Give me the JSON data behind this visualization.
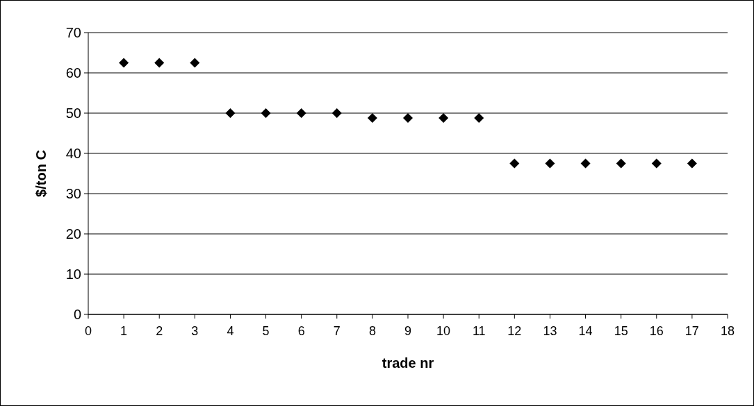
{
  "chart_data": {
    "type": "scatter",
    "xlabel": "trade nr",
    "ylabel": "$/ton C",
    "x": [
      1,
      2,
      3,
      4,
      5,
      6,
      7,
      8,
      9,
      10,
      11,
      12,
      13,
      14,
      15,
      16,
      17
    ],
    "series": [
      {
        "color": "#000000",
        "values": [
          62.5,
          62.5,
          62.5,
          50,
          50,
          50,
          50,
          48.8,
          48.8,
          48.8,
          48.8,
          37.5,
          37.5,
          37.5,
          37.5,
          37.5,
          37.5
        ]
      }
    ],
    "xlim": [
      0,
      18
    ],
    "xticks": [
      0,
      1,
      2,
      3,
      4,
      5,
      6,
      7,
      8,
      9,
      10,
      11,
      12,
      13,
      14,
      15,
      16,
      17,
      18
    ],
    "ylim": [
      0,
      70
    ],
    "yticks": [
      0,
      10,
      20,
      30,
      40,
      50,
      60,
      70
    ],
    "grid": "y",
    "marker": "diamond"
  }
}
